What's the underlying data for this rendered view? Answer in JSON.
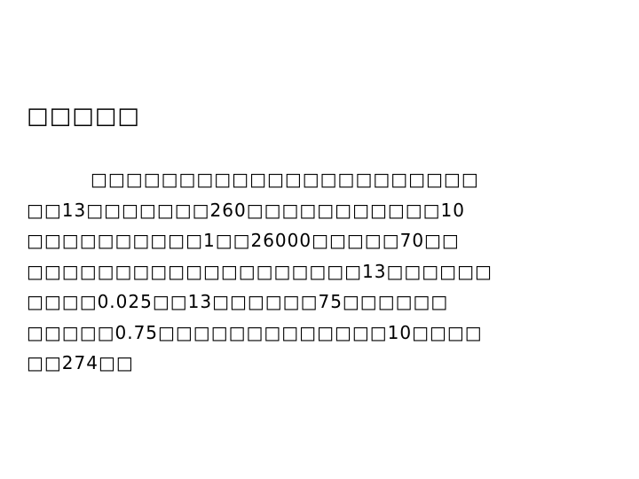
{
  "slide": {
    "heading": "□□□□□",
    "lines": [
      "□□□□□□□□□□□□□□□□□□□□□□",
      "□□13□□□□□□□260□□□□□□□□□□□10",
      "□□□□□□□□□□1□□26000□□□□□70□□",
      "□□□□□□□□□□□□□□□□□□□13□□□□□□",
      "□□□□0.025□□13□□□□□□75□□□□□□",
      "□□□□□0.75□□□□□□□□□□□□□10□□□□",
      "□□274□□"
    ]
  }
}
